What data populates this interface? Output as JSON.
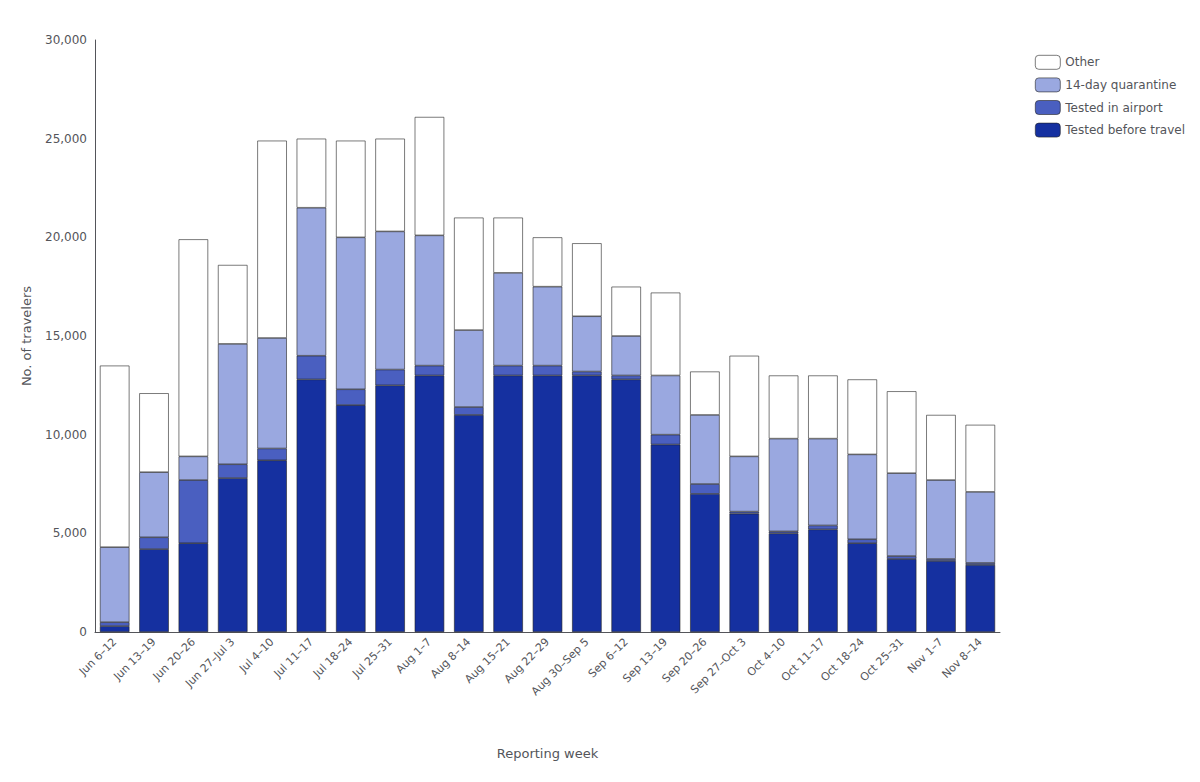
{
  "chart_data": {
    "type": "bar",
    "stacked": true,
    "grid": false,
    "legend": "upper right",
    "xlabel": "Reporting week",
    "ylabel": "No. of travelers",
    "categories": [
      "Jun 6–12",
      "Jun 13–19",
      "Jun 20–26",
      "Jun 27–Jul 3",
      "Jul 4–10",
      "Jul 11–17",
      "Jul 18–24",
      "Jul 25–31",
      "Aug 1–7",
      "Aug 8–14",
      "Aug 15–21",
      "Aug 22–29",
      "Aug 30–Sep 5",
      "Sep 6–12",
      "Sep 13–19",
      "Sep 20–26",
      "Sep 27–Oct 3",
      "Oct 4–10",
      "Oct 11–17",
      "Oct 18–24",
      "Oct 25–31",
      "Nov 1–7",
      "Nov 8–14"
    ],
    "series": [
      {
        "name": "Tested before travel",
        "color": "#1530a0",
        "values": [
          300,
          4200,
          4500,
          7800,
          8700,
          12800,
          11500,
          12500,
          13000,
          11000,
          13000,
          13000,
          13000,
          12800,
          9500,
          7000,
          6000,
          5000,
          5200,
          4500,
          3700,
          3600,
          3400
        ]
      },
      {
        "name": "Tested in airport",
        "color": "#4a5fc0",
        "values": [
          200,
          600,
          3200,
          700,
          600,
          1200,
          800,
          800,
          500,
          400,
          500,
          500,
          200,
          200,
          500,
          500,
          100,
          100,
          200,
          200,
          150,
          100,
          100
        ]
      },
      {
        "name": "14-day quarantine",
        "color": "#9aa8e0",
        "values": [
          3800,
          3300,
          1200,
          6100,
          5600,
          7500,
          7700,
          7000,
          6600,
          3900,
          4700,
          4000,
          2800,
          2000,
          3000,
          3500,
          2800,
          4700,
          4400,
          4300,
          4200,
          4000,
          3600
        ]
      },
      {
        "name": "Other",
        "color": "#ffffff",
        "values": [
          9200,
          4000,
          11000,
          4000,
          10000,
          3500,
          4900,
          4700,
          6000,
          5700,
          2800,
          2500,
          3700,
          2500,
          4200,
          2200,
          5100,
          3200,
          3200,
          3800,
          4150,
          3300,
          3400
        ]
      }
    ],
    "ylim": [
      0,
      30000
    ],
    "yticks": [
      0,
      {
        "value": 5000,
        "label": "5,000"
      },
      {
        "value": 10000,
        "label": "10,000"
      },
      {
        "value": 15000,
        "label": "15,000"
      },
      {
        "value": 20000,
        "label": "20,000"
      },
      {
        "value": 25000,
        "label": "25,000"
      },
      {
        "value": 30000,
        "label": "30,000"
      }
    ]
  }
}
